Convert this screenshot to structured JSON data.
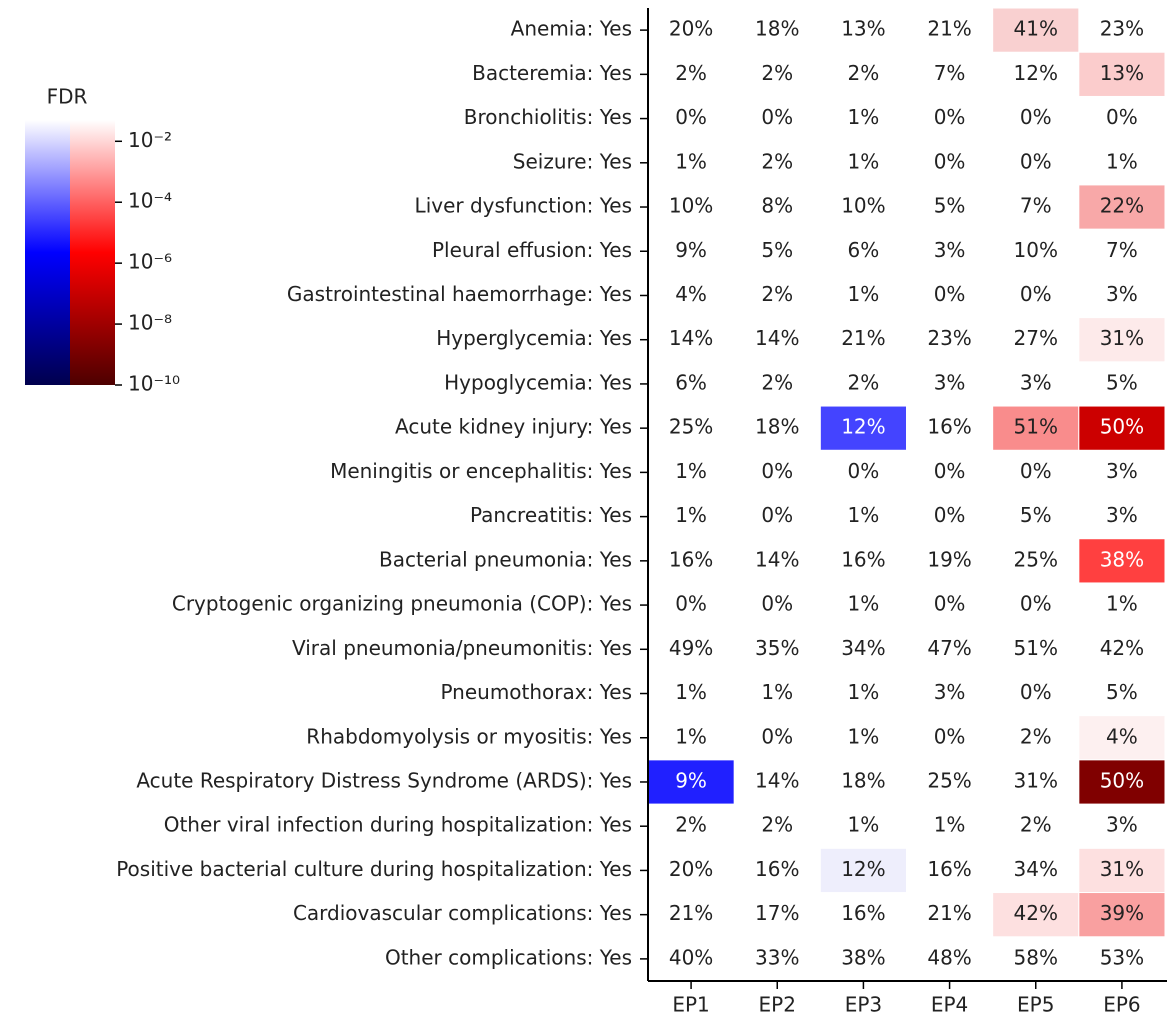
{
  "chart_data": {
    "type": "heatmap",
    "x": [
      "EP1",
      "EP2",
      "EP3",
      "EP4",
      "EP5",
      "EP6"
    ],
    "y": [
      "Anemia: Yes",
      "Bacteremia: Yes",
      "Bronchiolitis: Yes",
      "Seizure: Yes",
      "Liver dysfunction: Yes",
      "Pleural effusion: Yes",
      "Gastrointestinal haemorrhage: Yes",
      "Hyperglycemia: Yes",
      "Hypoglycemia: Yes",
      "Acute kidney injury: Yes",
      "Meningitis or encephalitis: Yes",
      "Pancreatitis: Yes",
      "Bacterial pneumonia: Yes",
      "Cryptogenic organizing pneumonia (COP): Yes",
      "Viral pneumonia/pneumonitis: Yes",
      "Pneumothorax: Yes",
      "Rhabdomyolysis or myositis: Yes",
      "Acute Respiratory Distress Syndrome (ARDS): Yes",
      "Other viral infection during hospitalization: Yes",
      "Positive bacterial culture during hospitalization: Yes",
      "Cardiovascular complications: Yes",
      "Other complications: Yes"
    ],
    "values": [
      [
        20,
        18,
        13,
        21,
        41,
        23
      ],
      [
        2,
        2,
        2,
        7,
        12,
        13
      ],
      [
        0,
        0,
        1,
        0,
        0,
        0
      ],
      [
        1,
        2,
        1,
        0,
        0,
        1
      ],
      [
        10,
        8,
        10,
        5,
        7,
        22
      ],
      [
        9,
        5,
        6,
        3,
        10,
        7
      ],
      [
        4,
        2,
        1,
        0,
        0,
        3
      ],
      [
        14,
        14,
        21,
        23,
        27,
        31
      ],
      [
        6,
        2,
        2,
        3,
        3,
        5
      ],
      [
        25,
        18,
        12,
        16,
        51,
        50
      ],
      [
        1,
        0,
        0,
        0,
        0,
        3
      ],
      [
        1,
        0,
        1,
        0,
        5,
        3
      ],
      [
        16,
        14,
        16,
        19,
        25,
        38
      ],
      [
        0,
        0,
        1,
        0,
        0,
        1
      ],
      [
        49,
        35,
        34,
        47,
        51,
        42
      ],
      [
        1,
        1,
        1,
        3,
        0,
        5
      ],
      [
        1,
        0,
        1,
        0,
        2,
        4
      ],
      [
        9,
        14,
        18,
        25,
        31,
        50
      ],
      [
        2,
        2,
        1,
        1,
        2,
        3
      ],
      [
        20,
        16,
        12,
        16,
        34,
        31
      ],
      [
        21,
        17,
        16,
        21,
        42,
        39
      ],
      [
        40,
        33,
        38,
        48,
        58,
        53
      ]
    ],
    "value_labels": [
      [
        "20%",
        "18%",
        "13%",
        "21%",
        "41%",
        "23%"
      ],
      [
        "2%",
        "2%",
        "2%",
        "7%",
        "12%",
        "13%"
      ],
      [
        "0%",
        "0%",
        "1%",
        "0%",
        "0%",
        "0%"
      ],
      [
        "1%",
        "2%",
        "1%",
        "0%",
        "0%",
        "1%"
      ],
      [
        "10%",
        "8%",
        "10%",
        "5%",
        "7%",
        "22%"
      ],
      [
        "9%",
        "5%",
        "6%",
        "3%",
        "10%",
        "7%"
      ],
      [
        "4%",
        "2%",
        "1%",
        "0%",
        "0%",
        "3%"
      ],
      [
        "14%",
        "14%",
        "21%",
        "23%",
        "27%",
        "31%"
      ],
      [
        "6%",
        "2%",
        "2%",
        "3%",
        "3%",
        "5%"
      ],
      [
        "25%",
        "18%",
        "12%",
        "16%",
        "51%",
        "50%"
      ],
      [
        "1%",
        "0%",
        "0%",
        "0%",
        "0%",
        "3%"
      ],
      [
        "1%",
        "0%",
        "1%",
        "0%",
        "5%",
        "3%"
      ],
      [
        "16%",
        "14%",
        "16%",
        "19%",
        "25%",
        "38%"
      ],
      [
        "0%",
        "0%",
        "1%",
        "0%",
        "0%",
        "1%"
      ],
      [
        "49%",
        "35%",
        "34%",
        "47%",
        "51%",
        "42%"
      ],
      [
        "1%",
        "1%",
        "1%",
        "3%",
        "0%",
        "5%"
      ],
      [
        "1%",
        "0%",
        "1%",
        "0%",
        "2%",
        "4%"
      ],
      [
        "9%",
        "14%",
        "18%",
        "25%",
        "31%",
        "50%"
      ],
      [
        "2%",
        "2%",
        "1%",
        "1%",
        "2%",
        "3%"
      ],
      [
        "20%",
        "16%",
        "12%",
        "16%",
        "34%",
        "31%"
      ],
      [
        "21%",
        "17%",
        "16%",
        "21%",
        "42%",
        "39%"
      ],
      [
        "40%",
        "33%",
        "38%",
        "48%",
        "58%",
        "53%"
      ]
    ],
    "colors": [
      [
        null,
        null,
        null,
        null,
        "#f9d0d0",
        null
      ],
      [
        null,
        null,
        null,
        null,
        null,
        "#fbcccc"
      ],
      [
        null,
        null,
        null,
        null,
        null,
        null
      ],
      [
        null,
        null,
        null,
        null,
        null,
        null
      ],
      [
        null,
        null,
        null,
        null,
        null,
        "#f8a8a8"
      ],
      [
        null,
        null,
        null,
        null,
        null,
        null
      ],
      [
        null,
        null,
        null,
        null,
        null,
        null
      ],
      [
        null,
        null,
        null,
        null,
        null,
        "#fdeaea"
      ],
      [
        null,
        null,
        null,
        null,
        null,
        null
      ],
      [
        null,
        null,
        "#4444ff",
        null,
        "#f98c8c",
        "#cc0000"
      ],
      [
        null,
        null,
        null,
        null,
        null,
        null
      ],
      [
        null,
        null,
        null,
        null,
        null,
        null
      ],
      [
        null,
        null,
        null,
        null,
        null,
        "#ff4040"
      ],
      [
        null,
        null,
        null,
        null,
        null,
        null
      ],
      [
        null,
        null,
        null,
        null,
        null,
        null
      ],
      [
        null,
        null,
        null,
        null,
        null,
        null
      ],
      [
        null,
        null,
        null,
        null,
        null,
        "#fdf0f0"
      ],
      [
        "#2020ff",
        null,
        null,
        null,
        null,
        "#800000"
      ],
      [
        null,
        null,
        null,
        null,
        null,
        null
      ],
      [
        null,
        null,
        "#eeeefc",
        null,
        null,
        "#fde0e0"
      ],
      [
        null,
        null,
        null,
        null,
        "#fde0e0",
        "#f9a0a0"
      ],
      [
        null,
        null,
        null,
        null,
        null,
        null
      ]
    ],
    "colorbar": {
      "label": "FDR",
      "log_scale": true,
      "lim": [
        1e-10,
        0.05
      ],
      "ticks": [
        {
          "value": 0.01,
          "label": "10⁻²"
        },
        {
          "value": 0.0001,
          "label": "10⁻⁴"
        },
        {
          "value": 1e-06,
          "label": "10⁻⁶"
        },
        {
          "value": 1e-08,
          "label": "10⁻⁸"
        },
        {
          "value": 1e-10,
          "label": "10⁻¹⁰"
        }
      ],
      "cmaps": [
        [
          "#ffffff",
          "#0000ff",
          "#00004d"
        ],
        [
          "#ffffff",
          "#ff0000",
          "#4d0000"
        ]
      ]
    }
  }
}
